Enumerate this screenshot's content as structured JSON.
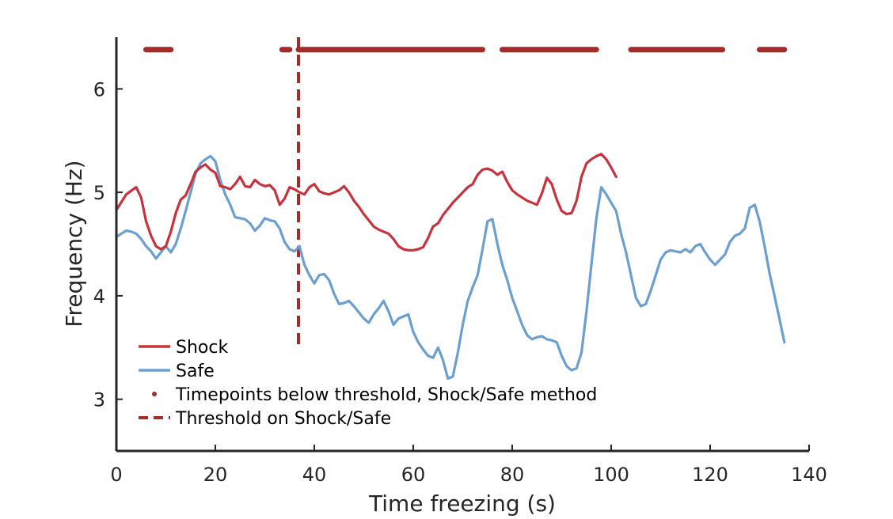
{
  "chart_data": {
    "type": "line",
    "title": "",
    "xlabel": "Time freezing (s)",
    "ylabel": "Frequency (Hz)",
    "xlim": [
      0,
      140
    ],
    "ylim": [
      2.5,
      6.5
    ],
    "xticks": [
      "0",
      "20",
      "40",
      "60",
      "80",
      "100",
      "120",
      "140"
    ],
    "yticks": [
      "3",
      "4",
      "5",
      "6"
    ],
    "grid": false,
    "legend_position": "bottom-left",
    "series": [
      {
        "name": "Shock",
        "color": "#c8323c",
        "x": [
          0,
          2,
          4,
          5,
          6,
          7,
          8,
          9,
          10,
          11,
          12,
          13,
          14,
          15,
          16,
          17,
          18,
          19,
          20,
          21,
          22,
          23,
          24,
          25,
          26,
          27,
          28,
          29,
          30,
          31,
          32,
          33,
          34,
          35,
          36,
          37,
          38,
          39,
          40,
          41,
          42,
          43,
          44,
          45,
          46,
          47,
          48,
          49,
          50,
          51,
          52,
          53,
          54,
          55,
          56,
          57,
          58,
          59,
          60,
          61,
          62,
          63,
          64,
          65,
          66,
          67,
          68,
          69,
          70,
          71,
          72,
          73,
          74,
          75,
          76,
          77,
          78,
          79,
          80,
          81,
          82,
          83,
          84,
          85,
          86,
          87,
          88,
          89,
          90,
          91,
          92,
          93,
          94,
          95,
          96,
          97,
          98,
          99,
          100,
          101
        ],
        "y": [
          4.83,
          4.98,
          5.05,
          4.95,
          4.72,
          4.58,
          4.48,
          4.45,
          4.48,
          4.62,
          4.8,
          4.93,
          4.97,
          5.08,
          5.2,
          5.24,
          5.27,
          5.22,
          5.19,
          5.06,
          5.05,
          5.03,
          5.08,
          5.15,
          5.06,
          5.05,
          5.12,
          5.08,
          5.06,
          5.07,
          5.02,
          4.88,
          4.94,
          5.05,
          5.03,
          5.0,
          4.98,
          5.05,
          5.08,
          5.01,
          4.99,
          4.98,
          5.0,
          5.02,
          5.06,
          5.0,
          4.92,
          4.86,
          4.79,
          4.73,
          4.67,
          4.64,
          4.62,
          4.6,
          4.55,
          4.48,
          4.45,
          4.44,
          4.44,
          4.45,
          4.47,
          4.56,
          4.67,
          4.7,
          4.78,
          4.84,
          4.9,
          4.95,
          5.0,
          5.05,
          5.08,
          5.17,
          5.22,
          5.23,
          5.21,
          5.17,
          5.2,
          5.1,
          5.02,
          4.98,
          4.95,
          4.92,
          4.9,
          4.88,
          4.99,
          5.14,
          5.08,
          4.93,
          4.82,
          4.79,
          4.8,
          4.92,
          5.15,
          5.28,
          5.32,
          5.35,
          5.37,
          5.32,
          5.24,
          5.15
        ]
      },
      {
        "name": "Safe",
        "color": "#6b9fd0",
        "x": [
          0,
          1,
          2,
          3,
          4,
          5,
          6,
          7,
          8,
          9,
          10,
          11,
          12,
          13,
          14,
          15,
          16,
          17,
          18,
          19,
          20,
          21,
          22,
          23,
          24,
          25,
          26,
          27,
          28,
          29,
          30,
          31,
          32,
          33,
          34,
          35,
          36,
          37,
          38,
          39,
          40,
          41,
          42,
          43,
          44,
          45,
          46,
          47,
          48,
          49,
          50,
          51,
          52,
          53,
          54,
          55,
          56,
          57,
          58,
          59,
          60,
          61,
          62,
          63,
          64,
          65,
          66,
          67,
          68,
          69,
          70,
          71,
          72,
          73,
          74,
          75,
          76,
          77,
          78,
          79,
          80,
          81,
          82,
          83,
          84,
          85,
          86,
          87,
          88,
          89,
          90,
          91,
          92,
          93,
          94,
          95,
          96,
          97,
          98,
          99,
          100,
          101,
          102,
          103,
          104,
          105,
          106,
          107,
          108,
          109,
          110,
          111,
          112,
          113,
          114,
          115,
          116,
          117,
          118,
          119,
          120,
          121,
          122,
          123,
          124,
          125,
          126,
          127,
          128,
          129,
          130,
          131,
          132,
          133,
          134,
          135
        ],
        "y": [
          4.57,
          4.6,
          4.63,
          4.62,
          4.6,
          4.55,
          4.48,
          4.43,
          4.36,
          4.42,
          4.48,
          4.42,
          4.5,
          4.65,
          4.82,
          5.0,
          5.18,
          5.28,
          5.32,
          5.35,
          5.3,
          5.12,
          4.98,
          4.88,
          4.76,
          4.75,
          4.74,
          4.7,
          4.63,
          4.68,
          4.75,
          4.73,
          4.72,
          4.65,
          4.52,
          4.45,
          4.43,
          4.48,
          4.3,
          4.2,
          4.12,
          4.2,
          4.21,
          4.15,
          4.02,
          3.92,
          3.93,
          3.95,
          3.9,
          3.84,
          3.78,
          3.74,
          3.82,
          3.88,
          3.95,
          3.85,
          3.72,
          3.78,
          3.8,
          3.82,
          3.65,
          3.55,
          3.48,
          3.42,
          3.4,
          3.5,
          3.38,
          3.2,
          3.22,
          3.45,
          3.72,
          3.95,
          4.08,
          4.2,
          4.45,
          4.72,
          4.74,
          4.5,
          4.3,
          4.15,
          3.98,
          3.85,
          3.72,
          3.62,
          3.58,
          3.6,
          3.61,
          3.58,
          3.57,
          3.55,
          3.42,
          3.32,
          3.28,
          3.3,
          3.45,
          3.85,
          4.3,
          4.75,
          5.05,
          4.98,
          4.9,
          4.82,
          4.6,
          4.42,
          4.2,
          3.98,
          3.9,
          3.92,
          4.05,
          4.2,
          4.35,
          4.42,
          4.44,
          4.43,
          4.42,
          4.45,
          4.42,
          4.48,
          4.5,
          4.42,
          4.35,
          4.3,
          4.35,
          4.4,
          4.52,
          4.58,
          4.6,
          4.65,
          4.85,
          4.88,
          4.72,
          4.48,
          4.22,
          4.0,
          3.78,
          3.55
        ]
      }
    ],
    "threshold_points": {
      "name": "Timepoints below threshold, Shock/Safe method",
      "color": "#a52a2a",
      "y": 6.38,
      "segments": [
        [
          6,
          11
        ],
        [
          33.5,
          35
        ],
        [
          36.8,
          74
        ],
        [
          78,
          97
        ],
        [
          104,
          122.5
        ],
        [
          130,
          135
        ]
      ]
    },
    "threshold_line": {
      "name": "Threshold on Shock/Safe",
      "color": "#a52a2a",
      "x": 36.8
    }
  }
}
